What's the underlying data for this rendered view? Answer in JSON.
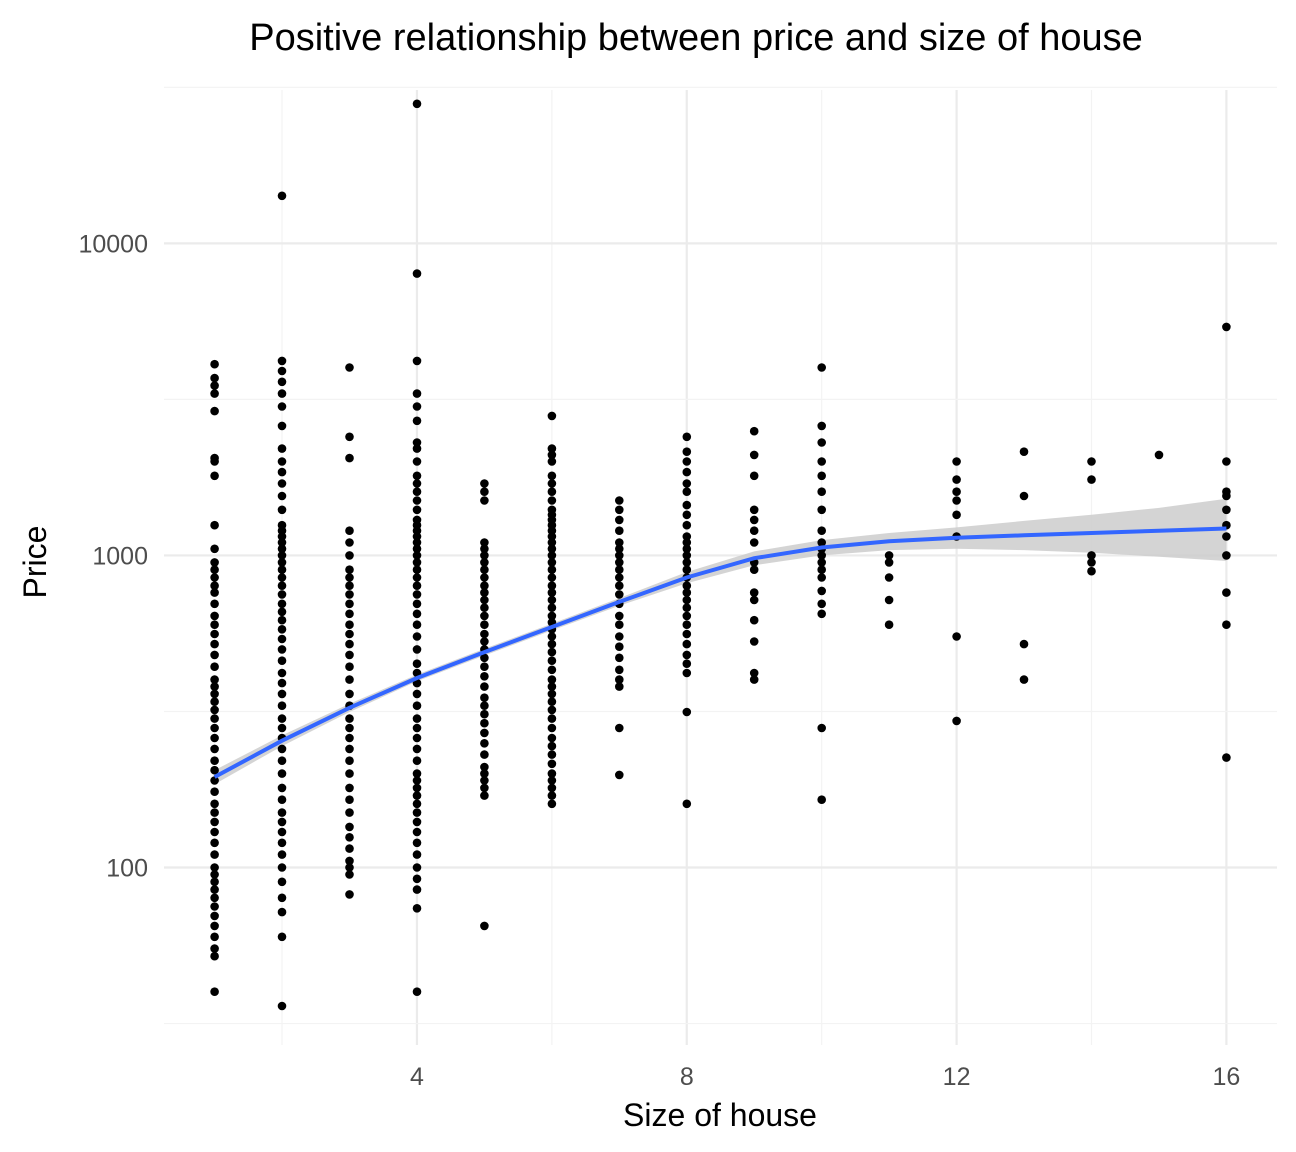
{
  "chart_data": {
    "type": "scatter",
    "title": "Positive relationship between price and size of house",
    "xlabel": "Size of house",
    "ylabel": "Price",
    "x_scale": "linear",
    "y_scale": "log10",
    "xlim": [
      0.25,
      16.75
    ],
    "ylim": [
      27,
      31000
    ],
    "x_ticks": [
      4,
      8,
      12,
      16
    ],
    "x_tick_labels": [
      "4",
      "8",
      "12",
      "16"
    ],
    "y_ticks": [
      100,
      1000,
      10000
    ],
    "y_tick_labels": [
      "100",
      "1000",
      "10000"
    ],
    "grid": true,
    "legend": "none",
    "point_color": "#000000",
    "smooth_color": "#3366ff",
    "ribbon_color": "#cccccc",
    "points_by_size": [
      {
        "x": 1,
        "y": [
          40,
          52,
          55,
          60,
          65,
          70,
          75,
          80,
          85,
          90,
          95,
          100,
          110,
          120,
          130,
          140,
          150,
          160,
          175,
          190,
          205,
          220,
          240,
          260,
          280,
          300,
          320,
          340,
          360,
          380,
          400,
          440,
          480,
          520,
          560,
          600,
          640,
          700,
          760,
          800,
          850,
          900,
          950,
          1050,
          1250,
          1800,
          2000,
          2050,
          2900,
          3300,
          3500,
          3700,
          4100
        ]
      },
      {
        "x": 2,
        "y": [
          36,
          60,
          72,
          80,
          90,
          100,
          110,
          120,
          130,
          140,
          150,
          165,
          180,
          200,
          220,
          240,
          260,
          280,
          300,
          330,
          360,
          390,
          420,
          460,
          500,
          540,
          580,
          620,
          660,
          700,
          750,
          800,
          850,
          900,
          950,
          1000,
          1050,
          1100,
          1150,
          1200,
          1250,
          1400,
          1550,
          1700,
          1850,
          2000,
          2200,
          2600,
          3000,
          3300,
          3600,
          3900,
          4200,
          14200
        ]
      },
      {
        "x": 3,
        "y": [
          82,
          95,
          100,
          105,
          115,
          125,
          135,
          150,
          165,
          180,
          200,
          220,
          240,
          260,
          280,
          300,
          330,
          360,
          400,
          440,
          480,
          520,
          560,
          600,
          650,
          700,
          750,
          800,
          850,
          900,
          1000,
          1100,
          1200,
          2050,
          2400,
          4000
        ]
      },
      {
        "x": 4,
        "y": [
          40,
          74,
          85,
          92,
          100,
          110,
          120,
          130,
          140,
          150,
          160,
          170,
          180,
          190,
          200,
          220,
          240,
          260,
          280,
          300,
          330,
          360,
          390,
          420,
          450,
          500,
          550,
          600,
          650,
          700,
          750,
          800,
          850,
          900,
          950,
          1000,
          1050,
          1100,
          1150,
          1200,
          1250,
          1300,
          1400,
          1500,
          1600,
          1700,
          1800,
          2000,
          2200,
          2300,
          2700,
          3000,
          3300,
          4200,
          8000,
          28000
        ]
      },
      {
        "x": 5,
        "y": [
          65,
          170,
          180,
          190,
          200,
          210,
          230,
          250,
          270,
          290,
          310,
          330,
          350,
          380,
          410,
          440,
          470,
          500,
          530,
          560,
          600,
          640,
          680,
          720,
          760,
          800,
          850,
          900,
          950,
          1000,
          1050,
          1100,
          1500,
          1600,
          1700
        ]
      },
      {
        "x": 6,
        "y": [
          160,
          170,
          180,
          190,
          200,
          215,
          230,
          245,
          260,
          280,
          300,
          320,
          340,
          360,
          380,
          400,
          430,
          460,
          490,
          520,
          550,
          580,
          610,
          640,
          680,
          720,
          760,
          800,
          850,
          900,
          950,
          1000,
          1050,
          1100,
          1150,
          1200,
          1250,
          1300,
          1350,
          1400,
          1500,
          1600,
          1700,
          1800,
          2000,
          2100,
          2200,
          2800
        ]
      },
      {
        "x": 7,
        "y": [
          198,
          280,
          380,
          400,
          430,
          470,
          510,
          550,
          600,
          640,
          700,
          750,
          800,
          850,
          900,
          950,
          1000,
          1050,
          1100,
          1200,
          1300,
          1400,
          1500
        ]
      },
      {
        "x": 8,
        "y": [
          160,
          315,
          420,
          450,
          480,
          520,
          560,
          600,
          640,
          680,
          720,
          760,
          800,
          850,
          900,
          950,
          1000,
          1050,
          1100,
          1150,
          1250,
          1350,
          1450,
          1600,
          1700,
          1850,
          2000,
          2150,
          2400
        ]
      },
      {
        "x": 9,
        "y": [
          400,
          420,
          530,
          620,
          720,
          760,
          900,
          950,
          1100,
          1200,
          1300,
          1400,
          1800,
          2100,
          2500
        ]
      },
      {
        "x": 10,
        "y": [
          165,
          280,
          650,
          700,
          770,
          850,
          900,
          950,
          1000,
          1050,
          1100,
          1200,
          1400,
          1600,
          1800,
          2000,
          2300,
          2600,
          4000
        ]
      },
      {
        "x": 11,
        "y": [
          600,
          720,
          850,
          950,
          1000
        ]
      },
      {
        "x": 12,
        "y": [
          295,
          550,
          1150,
          1350,
          1500,
          1600,
          1750,
          2000
        ]
      },
      {
        "x": 13,
        "y": [
          400,
          520,
          1550,
          2150
        ]
      },
      {
        "x": 14,
        "y": [
          890,
          950,
          1000,
          1750,
          2000
        ]
      },
      {
        "x": 15,
        "y": [
          2100
        ]
      },
      {
        "x": 16,
        "y": [
          225,
          600,
          760,
          1000,
          1150,
          1250,
          1400,
          1550,
          1600,
          2000,
          5400
        ]
      }
    ],
    "smooth_fit": {
      "x": [
        1,
        2,
        3,
        4,
        5,
        6,
        7,
        8,
        9,
        10,
        11,
        12,
        13,
        14,
        15,
        16
      ],
      "y": [
        195,
        255,
        325,
        405,
        490,
        590,
        710,
        850,
        980,
        1060,
        1110,
        1140,
        1160,
        1180,
        1200,
        1220
      ],
      "lower": [
        185,
        245,
        315,
        395,
        478,
        575,
        690,
        815,
        930,
        1000,
        1040,
        1050,
        1040,
        1020,
        990,
        960
      ],
      "upper": [
        205,
        265,
        335,
        415,
        502,
        605,
        730,
        885,
        1030,
        1120,
        1180,
        1230,
        1290,
        1350,
        1420,
        1520
      ]
    }
  }
}
